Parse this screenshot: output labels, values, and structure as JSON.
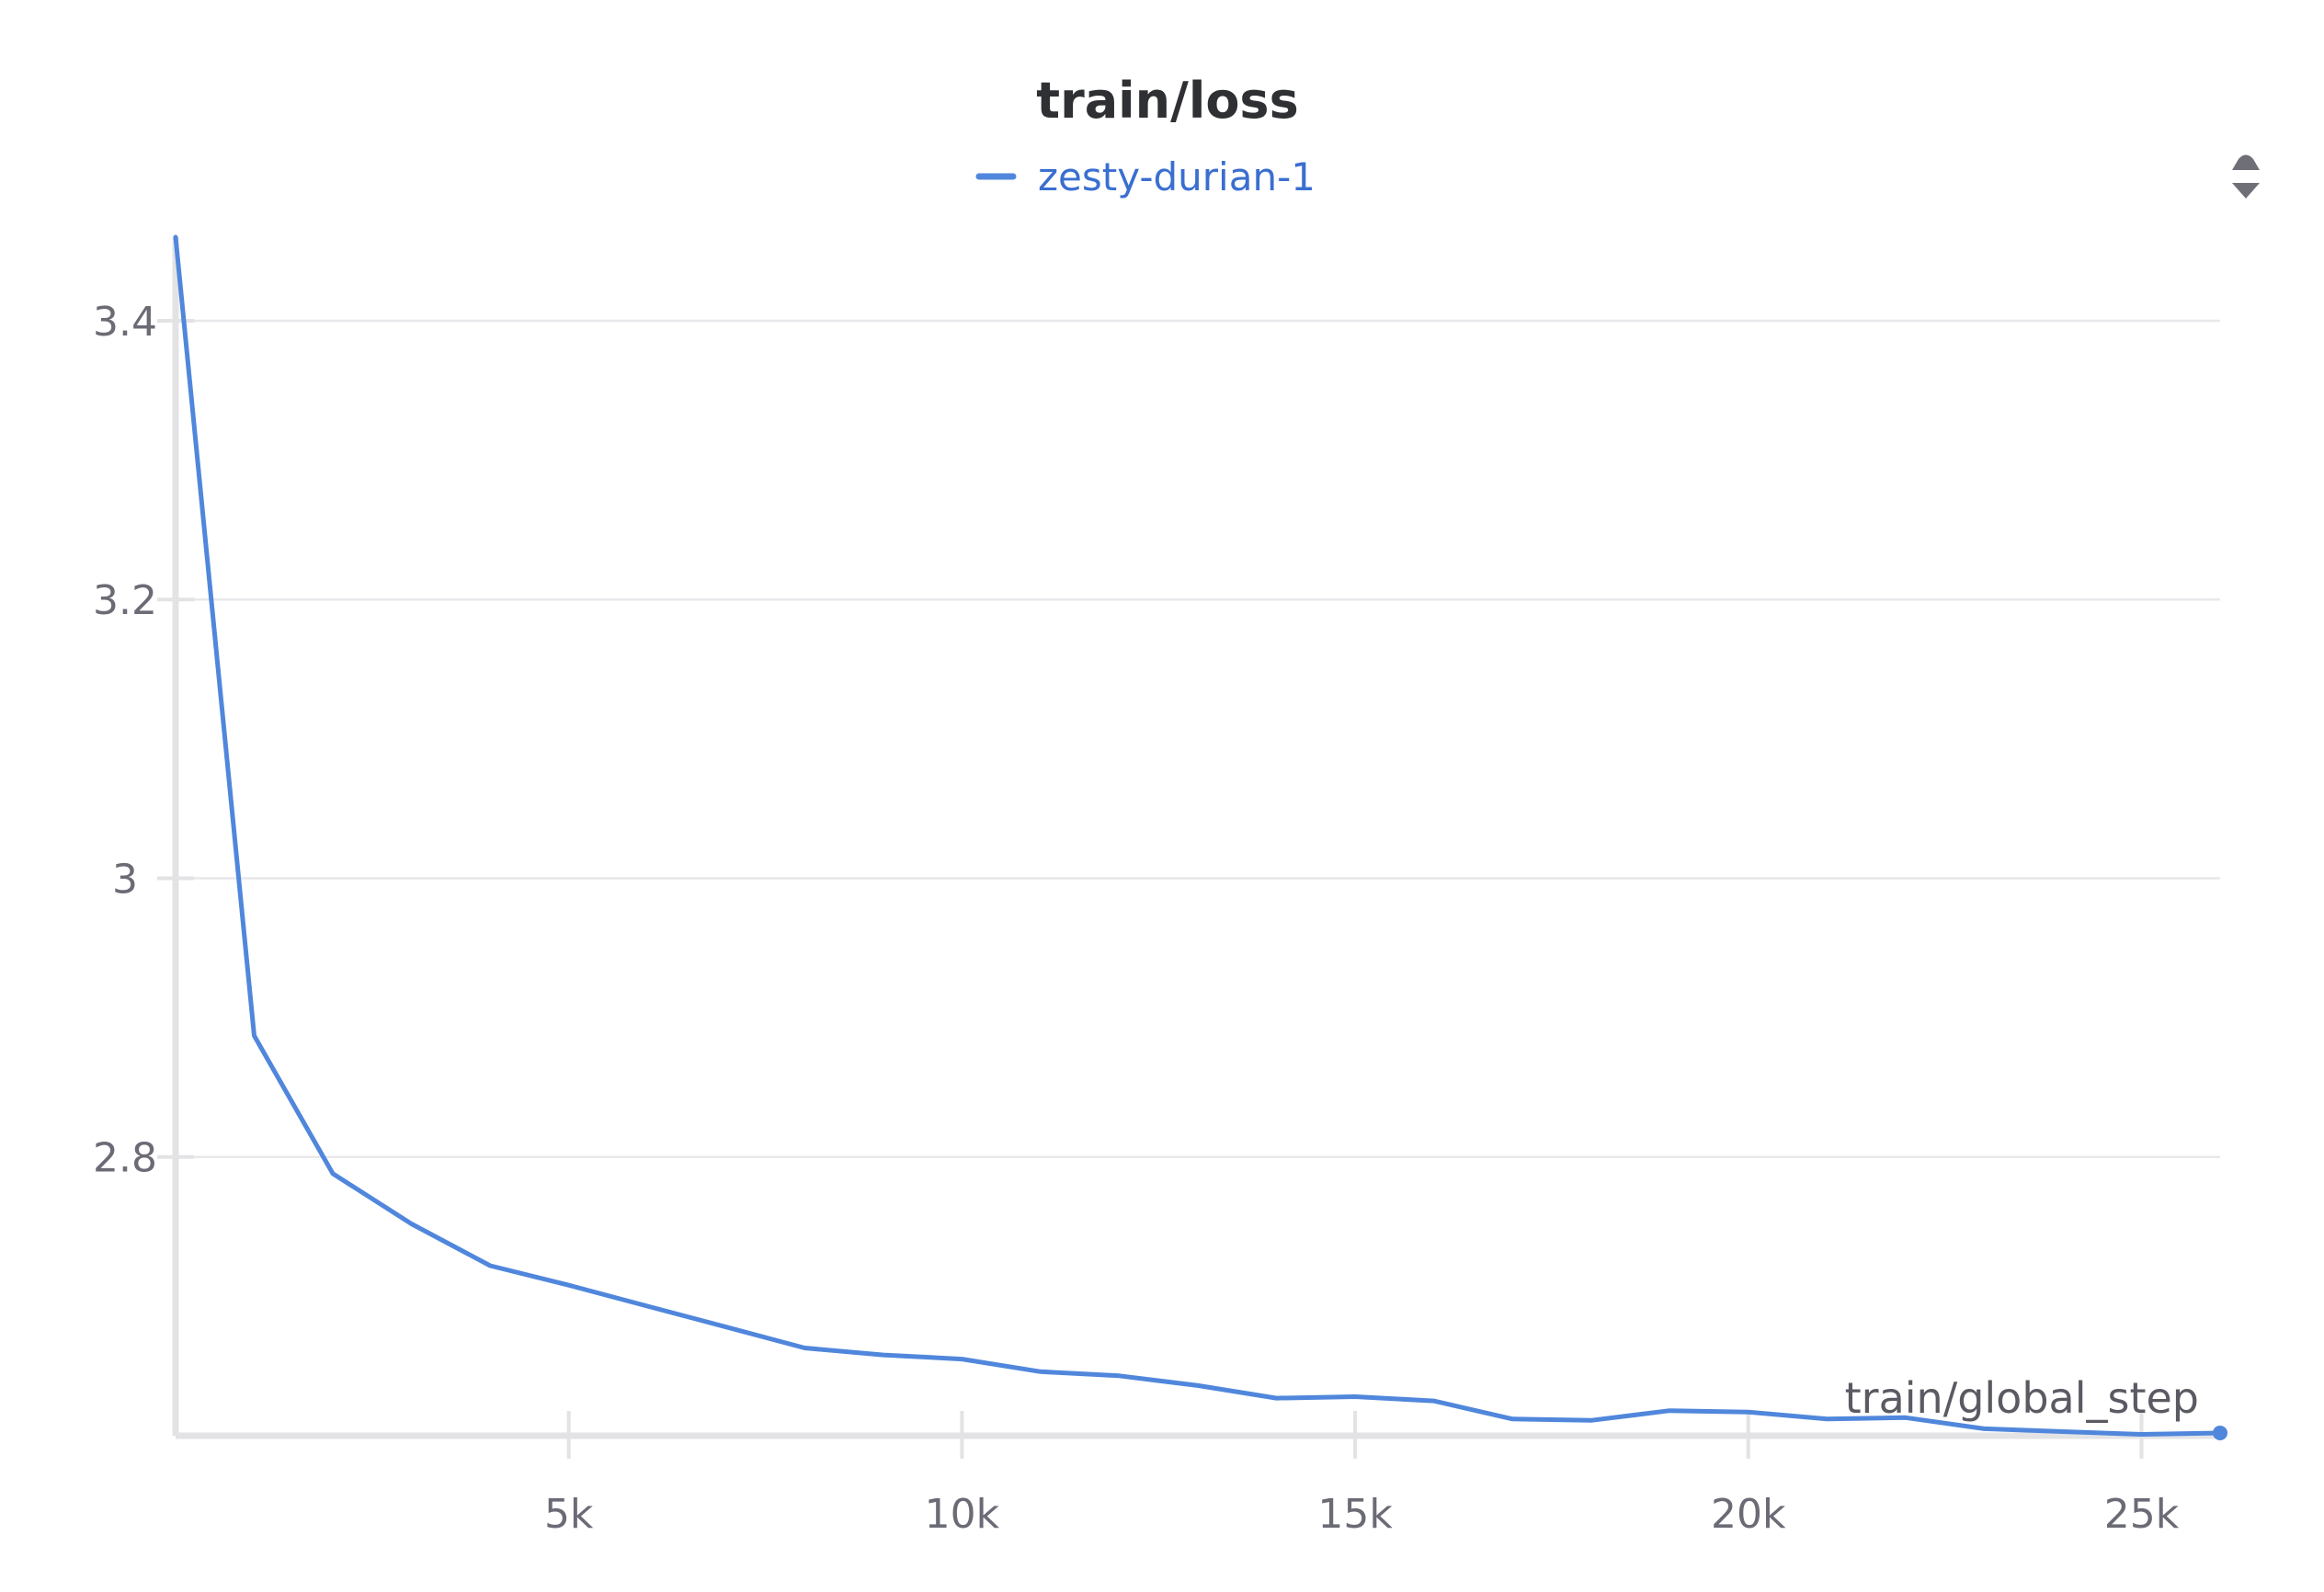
{
  "panel": {
    "menu_icon": "sort-icon"
  },
  "chart_data": {
    "type": "line",
    "title": "train/loss",
    "xlabel": "train/global_step",
    "ylabel": "",
    "xlim": [
      0,
      26000
    ],
    "ylim": [
      2.6,
      3.46
    ],
    "grid": "horizontal",
    "legend_position": "top-center",
    "x_ticks": [
      5000,
      10000,
      15000,
      20000,
      25000
    ],
    "x_tick_labels": [
      "5k",
      "10k",
      "15k",
      "20k",
      "25k"
    ],
    "y_ticks": [
      2.8,
      3,
      3.2,
      3.4
    ],
    "y_tick_labels": [
      "2.8",
      "3",
      "3.2",
      "3.4"
    ],
    "series": [
      {
        "name": "zesty-durian-1",
        "color": "#5087dc",
        "x": [
          0,
          1000,
          2000,
          3000,
          4000,
          5000,
          6000,
          7000,
          8000,
          9000,
          10000,
          11000,
          12000,
          13000,
          14000,
          15000,
          16000,
          17000,
          18000,
          19000,
          20000,
          21000,
          22000,
          23000,
          24000,
          25000,
          26000
        ],
        "y": [
          3.46,
          2.887,
          2.788,
          2.752,
          2.722,
          2.708,
          2.693,
          2.678,
          2.663,
          2.658,
          2.655,
          2.646,
          2.643,
          2.636,
          2.627,
          2.628,
          2.625,
          2.612,
          2.611,
          2.618,
          2.617,
          2.612,
          2.613,
          2.605,
          2.603,
          2.601,
          2.602
        ]
      }
    ]
  }
}
